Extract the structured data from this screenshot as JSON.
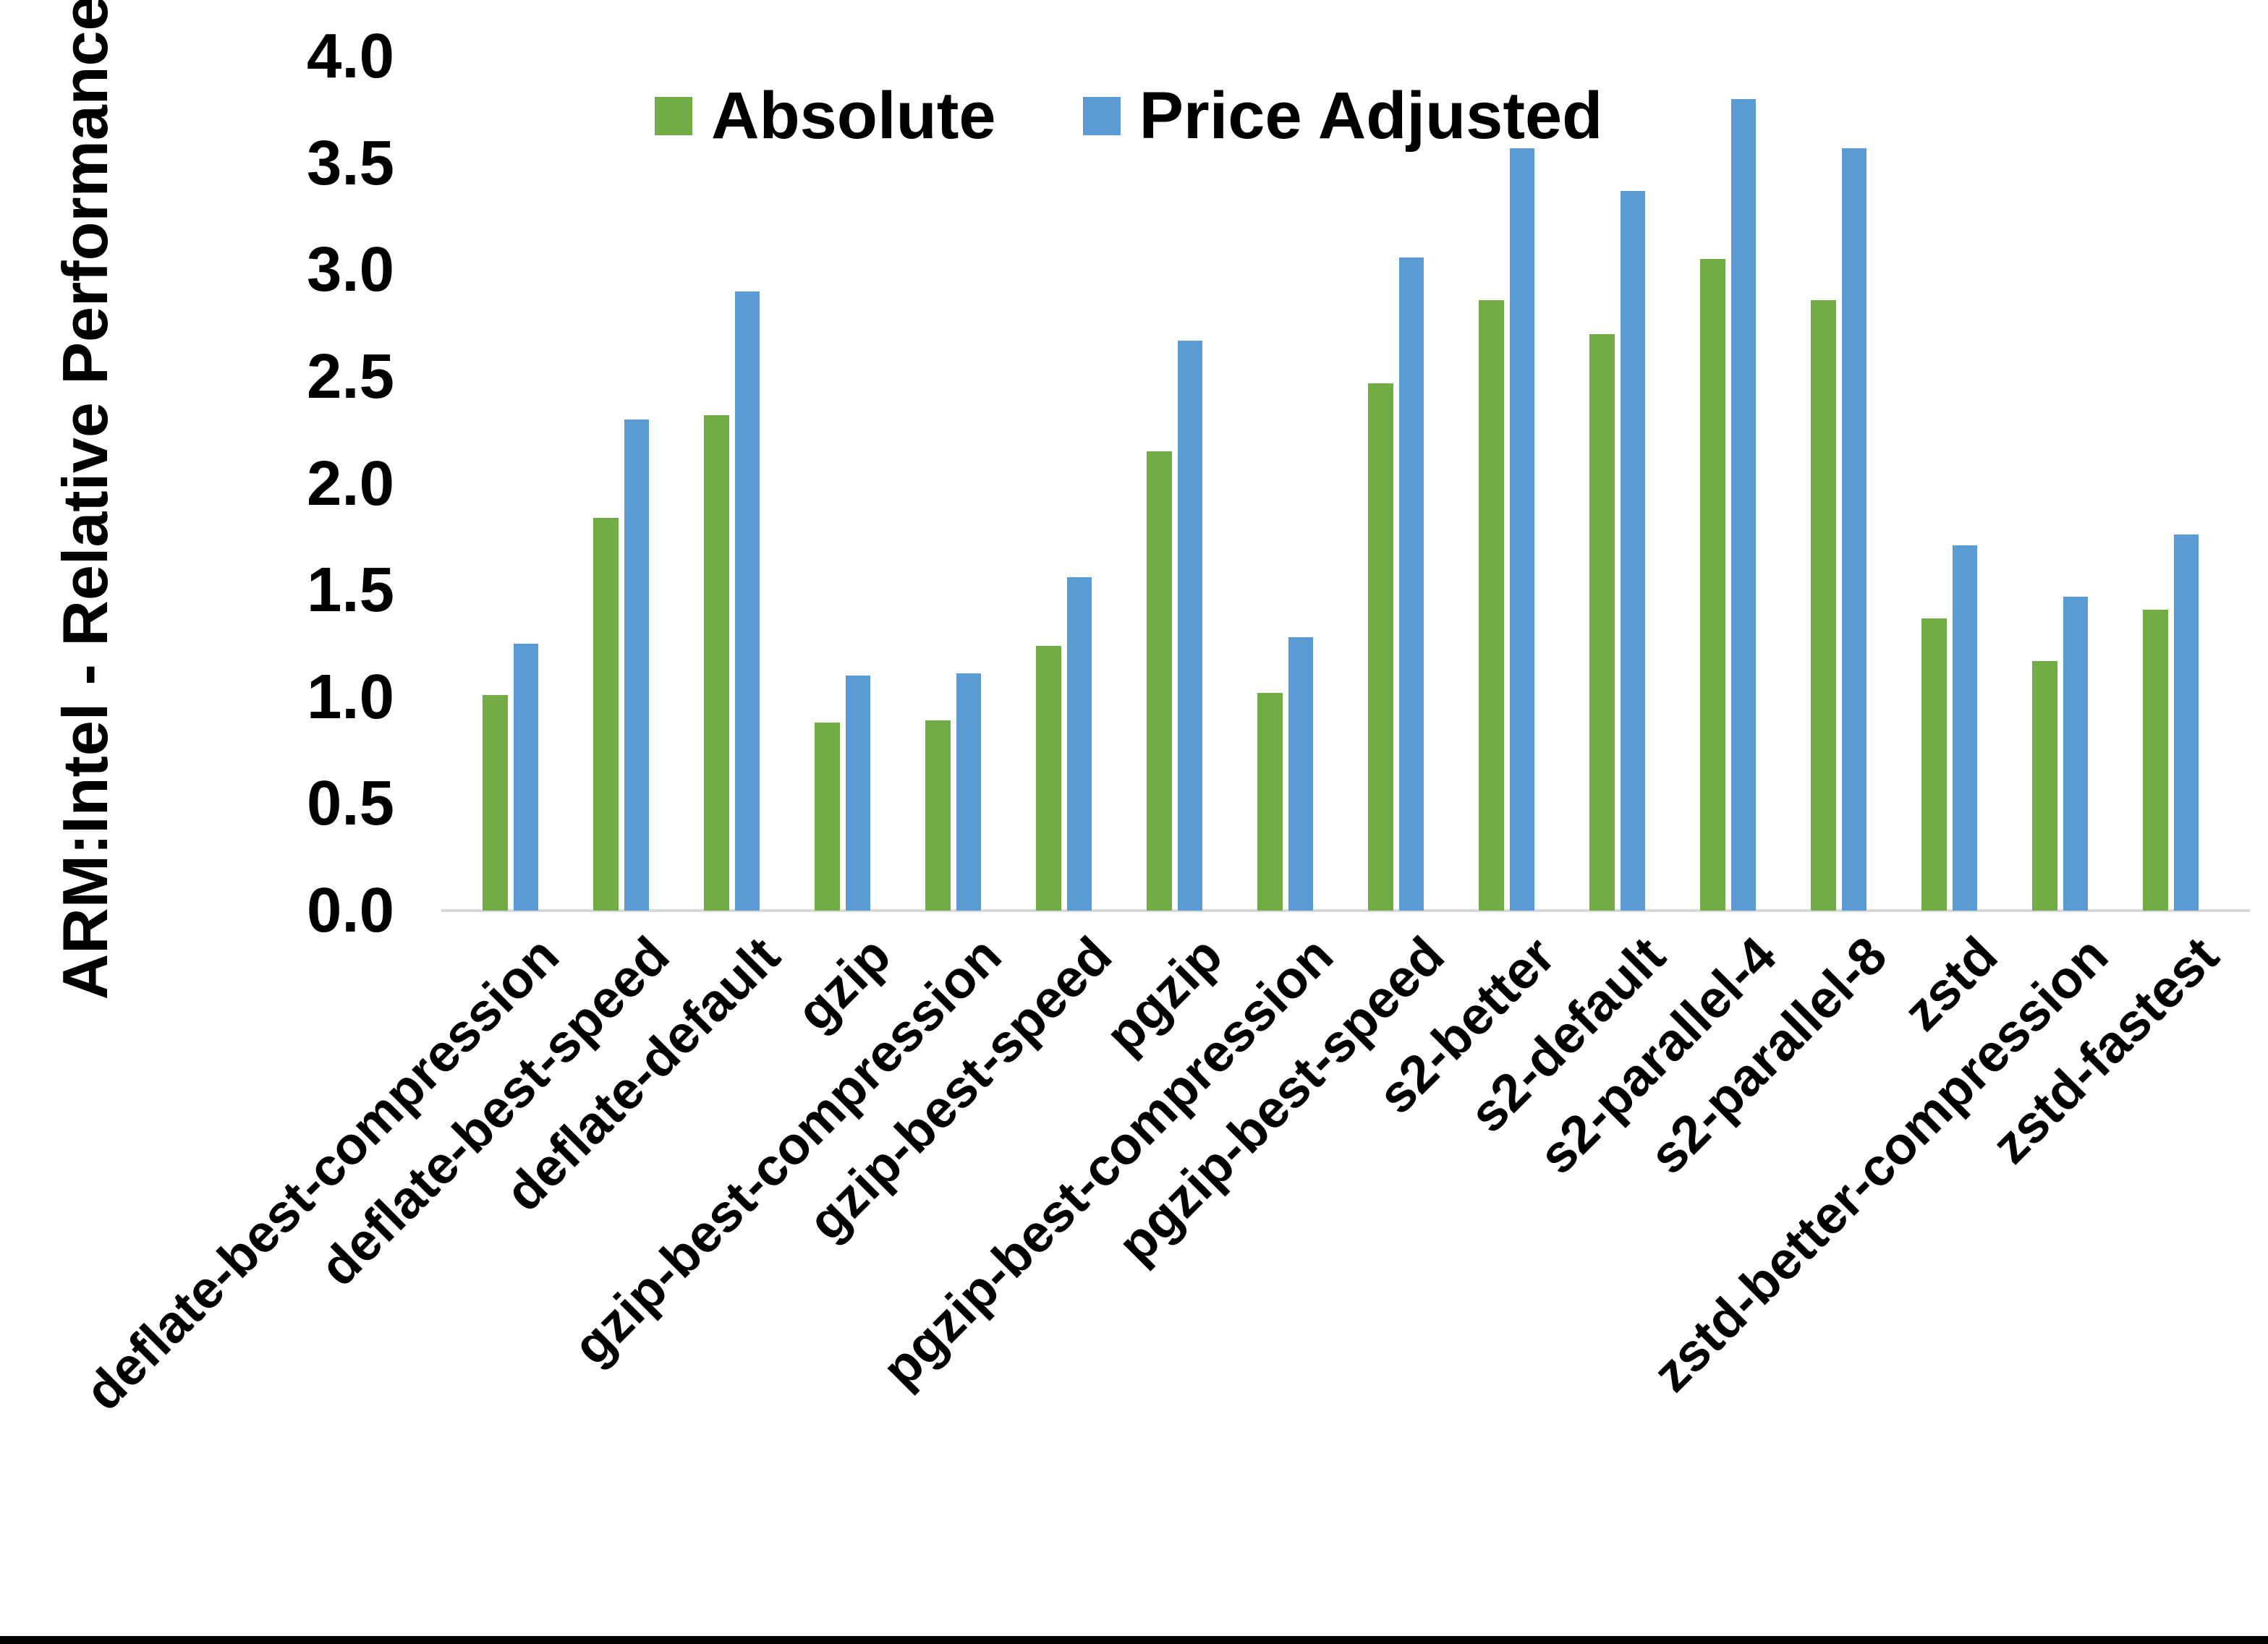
{
  "page": {
    "background_color": "#ffffff",
    "bottom_border_color": "#000000"
  },
  "chart_data": {
    "type": "bar",
    "title": "",
    "xlabel": "",
    "ylabel": "ARM:Intel - Relative Performance",
    "ylim": [
      0,
      4
    ],
    "ytick_step": 0.5,
    "ytick_labels": [
      "0.0",
      "0.5",
      "1.0",
      "1.5",
      "2.0",
      "2.5",
      "3.0",
      "3.5",
      "4.0"
    ],
    "grid": false,
    "legend_position": "top-center",
    "axis_line_color": "#d9d9d9",
    "categories": [
      "deflate-best-compression",
      "deflate-best-speed",
      "deflate-default",
      "gzip",
      "gzip-best-compression",
      "gzip-best-speed",
      "pgzip",
      "pgzip-best-compression",
      "pgzip-best-speed",
      "s2-better",
      "s2-default",
      "s2-parallel-4",
      "s2-parallel-8",
      "zstd",
      "zstd-better-compression",
      "zstd-fastest"
    ],
    "series": [
      {
        "name": "Absolute",
        "color": "#70AD47",
        "values": [
          1.01,
          1.84,
          2.32,
          0.88,
          0.89,
          1.24,
          2.15,
          1.02,
          2.47,
          2.86,
          2.7,
          3.05,
          2.86,
          1.37,
          1.17,
          1.41
        ]
      },
      {
        "name": "Price Adjusted",
        "color": "#5B9BD5",
        "values": [
          1.25,
          2.3,
          2.9,
          1.1,
          1.11,
          1.56,
          2.67,
          1.28,
          3.06,
          3.57,
          3.37,
          3.8,
          3.57,
          1.71,
          1.47,
          1.76
        ]
      }
    ]
  }
}
